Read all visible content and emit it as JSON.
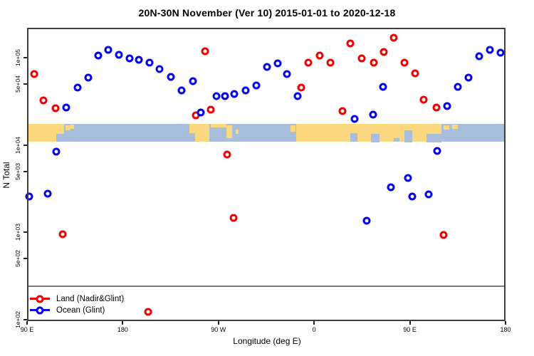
{
  "chart_data": {
    "type": "scatter",
    "title": "20N-30N November (Ver 10)   2015-01-01 to 2020-12-18",
    "xlabel": "Longitude (deg E)",
    "ylabel": "N Total",
    "x_axis": {
      "range_deg_east": [
        90,
        540
      ],
      "ticks": [
        {
          "lon": 90,
          "label": "90 E"
        },
        {
          "lon": 180,
          "label": "180"
        },
        {
          "lon": 270,
          "label": "90 W"
        },
        {
          "lon": 360,
          "label": "0"
        },
        {
          "lon": 450,
          "label": "90 E"
        },
        {
          "lon": 540,
          "label": "180"
        }
      ]
    },
    "y_axis": {
      "scale": "log10",
      "ylim": [
        90,
        220000
      ],
      "ticks": [
        {
          "value": 100000,
          "label": "1e+05"
        },
        {
          "value": 50000,
          "label": "5e+04"
        },
        {
          "value": 10000,
          "label": "1e+04"
        },
        {
          "value": 5000,
          "label": "5e+03"
        },
        {
          "value": 1000,
          "label": "1e+03"
        },
        {
          "value": 500,
          "label": "5e+02"
        },
        {
          "value": 100,
          "label": "1e+02"
        }
      ]
    },
    "grid": false,
    "legend_position": "bottom-left",
    "reference_line": {
      "value": 240,
      "color": "#7d7d7d"
    },
    "map_band": {
      "value_top": 17500,
      "value_bottom": 10800,
      "ocean_color": "#A9BEDC",
      "land_color": "#FBD87E",
      "land_segments": [
        {
          "lon0": 90,
          "lon1": 117.5,
          "top": 0,
          "bottom": 1
        },
        {
          "lon0": 117.5,
          "lon1": 125,
          "top": 0,
          "bottom": 0.55
        },
        {
          "lon0": 126,
          "lon1": 130,
          "top": 0.1,
          "bottom": 0.35
        },
        {
          "lon0": 130.5,
          "lon1": 134,
          "top": 0.05,
          "bottom": 0.28
        },
        {
          "lon0": 242.5,
          "lon1": 248,
          "top": 0,
          "bottom": 0.5
        },
        {
          "lon0": 248,
          "lon1": 261.5,
          "top": 0,
          "bottom": 1
        },
        {
          "lon0": 263,
          "lon1": 277.5,
          "top": 0,
          "bottom": 0.22
        },
        {
          "lon0": 277.5,
          "lon1": 283,
          "top": 0.1,
          "bottom": 0.78
        },
        {
          "lon0": 286,
          "lon1": 289,
          "top": 0.3,
          "bottom": 0.55
        },
        {
          "lon0": 337.5,
          "lon1": 342.5,
          "top": 0.1,
          "bottom": 0.45
        },
        {
          "lon0": 343,
          "lon1": 480,
          "top": 0,
          "bottom": 1
        },
        {
          "lon0": 482,
          "lon1": 487,
          "top": 0.1,
          "bottom": 0.32
        },
        {
          "lon0": 490,
          "lon1": 495,
          "top": 0.05,
          "bottom": 0.28
        }
      ],
      "ocean_notches": [
        {
          "lon0": 394,
          "lon1": 401,
          "top": 0.5,
          "bottom": 1
        },
        {
          "lon0": 413.5,
          "lon1": 421.5,
          "top": 0.55,
          "bottom": 1
        },
        {
          "lon0": 435,
          "lon1": 440,
          "top": 0.78,
          "bottom": 1
        },
        {
          "lon0": 445,
          "lon1": 452.3,
          "top": 0.35,
          "bottom": 1
        },
        {
          "lon0": 466,
          "lon1": 480,
          "top": 0.55,
          "bottom": 1
        }
      ]
    },
    "series": [
      {
        "name": "Land (Nadir&Glint)",
        "color": "#EE0000",
        "marker": "open-circle",
        "points": [
          [
            96.7,
            65000
          ],
          [
            105.4,
            32400
          ],
          [
            116.7,
            26300
          ],
          [
            123.4,
            950
          ],
          [
            203.7,
            122
          ],
          [
            248.5,
            21800
          ],
          [
            257.2,
            118000
          ],
          [
            262.5,
            25300
          ],
          [
            277.9,
            7800
          ],
          [
            283.9,
            1470
          ],
          [
            348.1,
            45700
          ],
          [
            354.8,
            88500
          ],
          [
            365.5,
            105000
          ],
          [
            375.5,
            88500
          ],
          [
            386.9,
            24400
          ],
          [
            394.2,
            145000
          ],
          [
            404.9,
            99000
          ],
          [
            416.3,
            88500
          ],
          [
            425.6,
            116000
          ],
          [
            435.0,
            169000
          ],
          [
            445.0,
            88500
          ],
          [
            455.1,
            66500
          ],
          [
            463.1,
            33000
          ],
          [
            475.1,
            26800
          ],
          [
            481.8,
            930
          ]
        ]
      },
      {
        "name": "Ocean (Glint)",
        "color": "#0000EE",
        "marker": "open-circle",
        "points": [
          [
            92.0,
            2550
          ],
          [
            109.4,
            2750
          ],
          [
            117.4,
            8400
          ],
          [
            126.8,
            26800
          ],
          [
            137.5,
            45700
          ],
          [
            147.5,
            59500
          ],
          [
            156.9,
            105000
          ],
          [
            166.2,
            122000
          ],
          [
            176.3,
            107000
          ],
          [
            186.3,
            97500
          ],
          [
            195.0,
            94000
          ],
          [
            205.0,
            87000
          ],
          [
            214.4,
            73500
          ],
          [
            225.1,
            60500
          ],
          [
            235.1,
            42500
          ],
          [
            245.8,
            54000
          ],
          [
            253.2,
            23500
          ],
          [
            267.9,
            36500
          ],
          [
            275.9,
            36000
          ],
          [
            285.2,
            38500
          ],
          [
            295.3,
            42500
          ],
          [
            305.3,
            48500
          ],
          [
            316.0,
            79000
          ],
          [
            325.4,
            85500
          ],
          [
            334.7,
            65500
          ],
          [
            344.7,
            36000
          ],
          [
            398.2,
            19800
          ],
          [
            409.6,
            1360
          ],
          [
            415.6,
            22200
          ],
          [
            425.0,
            46500
          ],
          [
            432.3,
            3300
          ],
          [
            448.4,
            4200
          ],
          [
            452.4,
            2550
          ],
          [
            467.8,
            2700
          ],
          [
            475.8,
            8600
          ],
          [
            485.1,
            28000
          ],
          [
            495.2,
            46500
          ],
          [
            505.2,
            59500
          ],
          [
            515.2,
            103000
          ],
          [
            525.3,
            122000
          ],
          [
            535.3,
            114000
          ]
        ]
      }
    ]
  }
}
